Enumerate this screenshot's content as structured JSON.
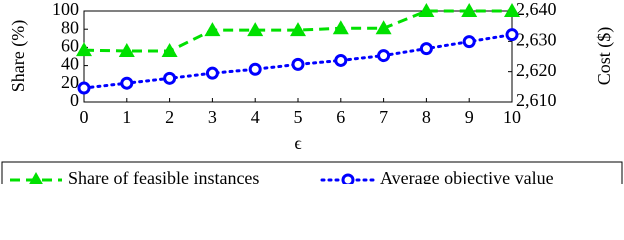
{
  "chart_data": {
    "type": "line",
    "x_label": "ϵ",
    "y_label": "Share (%)",
    "y2_label": "Cost ($)",
    "x": [
      0,
      1,
      2,
      3,
      4,
      5,
      6,
      7,
      8,
      9,
      10
    ],
    "xlim": [
      0,
      10
    ],
    "xticks": [
      0,
      1,
      2,
      3,
      4,
      5,
      6,
      7,
      8,
      9,
      10
    ],
    "ylim": [
      0,
      100
    ],
    "yticks": [
      0,
      20,
      40,
      60,
      80,
      100
    ],
    "y2lim": [
      2610,
      2640
    ],
    "y2ticks": [
      {
        "value": 2610,
        "label": "2,610"
      },
      {
        "value": 2620,
        "label": "2,620"
      },
      {
        "value": 2630,
        "label": "2,630"
      },
      {
        "value": 2640,
        "label": "2,640"
      }
    ],
    "legend": "bottom",
    "series": [
      {
        "name": "Share of feasible instances",
        "color": "#00e000",
        "marker": "triangle",
        "linestyle": "dashed",
        "values": [
          57,
          56,
          56,
          79,
          79,
          79,
          81,
          81,
          100,
          100,
          100
        ]
      },
      {
        "name": "Average objective value",
        "color": "#0000ff",
        "marker": "circle",
        "linestyle": "dotted",
        "axis": "y2",
        "values": [
          2614.6,
          2616.2,
          2617.8,
          2619.5,
          2620.8,
          2622.4,
          2623.7,
          2625.3,
          2627.6,
          2629.9,
          2632.2
        ]
      }
    ]
  }
}
